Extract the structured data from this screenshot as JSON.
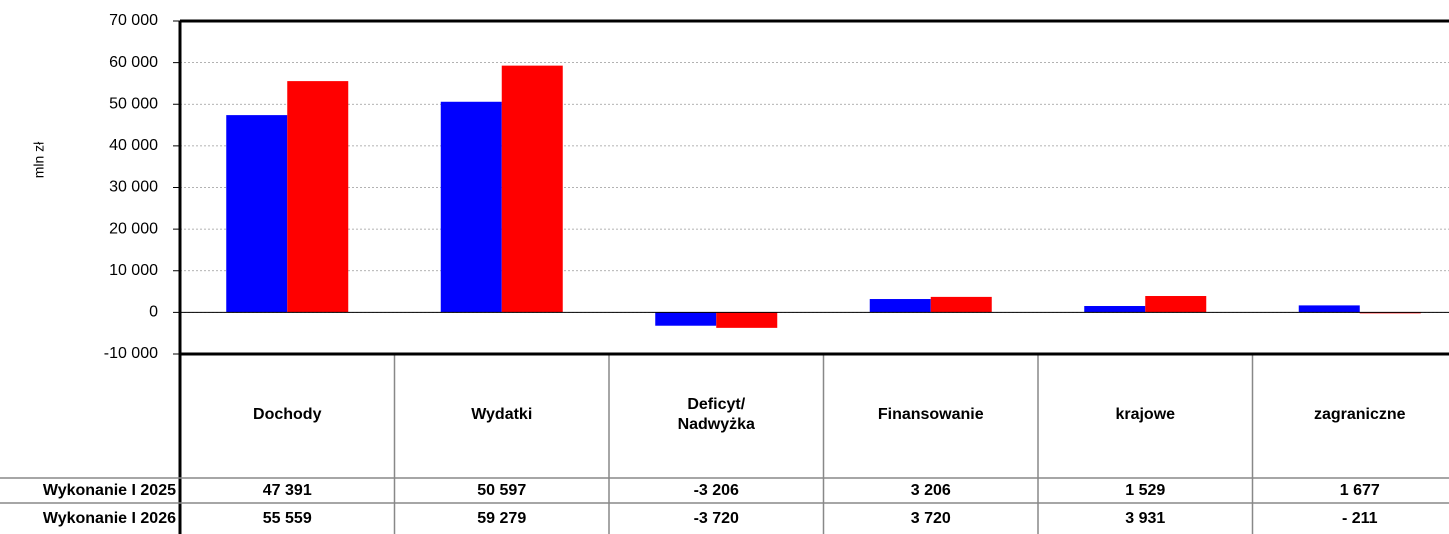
{
  "chart_data": {
    "type": "bar",
    "y_label": "mln zł",
    "categories": [
      "Dochody",
      "Wydatki",
      "Deficyt/\nNadwyżka",
      "Finansowanie",
      "krajowe",
      "zagraniczne"
    ],
    "series": [
      {
        "name": "Wykonanie I 2025",
        "color": "#0000ff",
        "values": [
          47391,
          50597,
          -3206,
          3206,
          1529,
          1677
        ],
        "value_labels": [
          "47 391",
          "50 597",
          "-3 206",
          "3 206",
          "1 529",
          "1 677"
        ]
      },
      {
        "name": "Wykonanie I 2026",
        "color": "#ff0000",
        "values": [
          55559,
          59279,
          -3720,
          3720,
          3931,
          -211
        ],
        "value_labels": [
          "55 559",
          "59 279",
          "-3 720",
          "3 720",
          "3 931",
          "- 211"
        ]
      }
    ],
    "ylim": [
      -10000,
      70000
    ],
    "yticks": [
      {
        "value": -10000,
        "label": "-10 000"
      },
      0,
      {
        "value": 10000,
        "label": "10 000"
      },
      {
        "value": 20000,
        "label": "20 000"
      },
      {
        "value": 30000,
        "label": "30 000"
      },
      {
        "value": 40000,
        "label": "40 000"
      },
      {
        "value": 50000,
        "label": "50 000"
      },
      {
        "value": 60000,
        "label": "60 000"
      },
      {
        "value": 70000,
        "label": "70 000"
      }
    ],
    "grid": true
  }
}
